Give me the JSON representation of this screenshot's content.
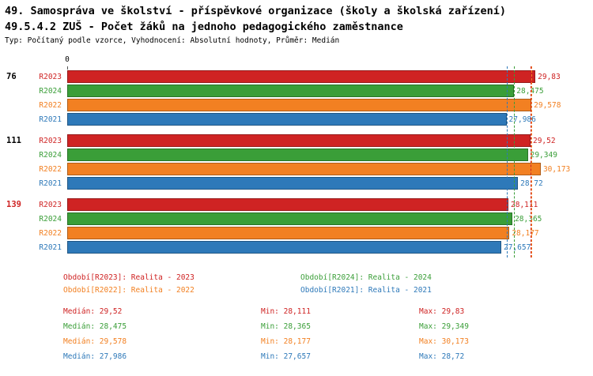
{
  "title_line1": "49. Samospráva ve školství - příspěvkové organizace (školy a školská zařízení)",
  "title_line2": "49.5.4.2 ZUŠ - Počet žáků na jednoho pedagogického zaměstnance",
  "subtitle": "Typ: Počítaný podle vzorce, Vyhodnocení: Absolutní hodnoty, Průměr: Medián",
  "colors": {
    "r2023": "#cf2323",
    "r2024": "#3a9e38",
    "r2022": "#f28022",
    "r2021": "#2e79b9"
  },
  "chart_data": {
    "type": "bar",
    "orientation": "horizontal",
    "axis": {
      "min": 0,
      "max": 33.5,
      "origin_label": "0"
    },
    "series_order": [
      "R2023",
      "R2024",
      "R2022",
      "R2021"
    ],
    "groups": [
      {
        "label": "76",
        "label_color": "#000000",
        "bars": [
          {
            "series": "R2023",
            "value": 29.83,
            "value_label": "29,83"
          },
          {
            "series": "R2024",
            "value": 28.475,
            "value_label": "28,475"
          },
          {
            "series": "R2022",
            "value": 29.578,
            "value_label": "29,578"
          },
          {
            "series": "R2021",
            "value": 27.986,
            "value_label": "27,986"
          }
        ]
      },
      {
        "label": "111",
        "label_color": "#000000",
        "bars": [
          {
            "series": "R2023",
            "value": 29.52,
            "value_label": "29,52"
          },
          {
            "series": "R2024",
            "value": 29.349,
            "value_label": "29,349"
          },
          {
            "series": "R2022",
            "value": 30.173,
            "value_label": "30,173"
          },
          {
            "series": "R2021",
            "value": 28.72,
            "value_label": "28,72"
          }
        ]
      },
      {
        "label": "139",
        "label_color": "#cf2323",
        "bars": [
          {
            "series": "R2023",
            "value": 28.111,
            "value_label": "28,111"
          },
          {
            "series": "R2024",
            "value": 28.365,
            "value_label": "28,365"
          },
          {
            "series": "R2022",
            "value": 28.177,
            "value_label": "28,177"
          },
          {
            "series": "R2021",
            "value": 27.657,
            "value_label": "27,657"
          }
        ]
      }
    ],
    "median_lines": [
      {
        "series": "R2023",
        "value": 29.52
      },
      {
        "series": "R2024",
        "value": 28.475
      },
      {
        "series": "R2022",
        "value": 29.578
      },
      {
        "series": "R2021",
        "value": 27.986
      }
    ]
  },
  "legend": [
    {
      "series": "R2023",
      "label": "Období[R2023]: Realita - 2023"
    },
    {
      "series": "R2024",
      "label": "Období[R2024]: Realita - 2024"
    },
    {
      "series": "R2022",
      "label": "Období[R2022]: Realita - 2022"
    },
    {
      "series": "R2021",
      "label": "Období[R2021]: Realita - 2021"
    }
  ],
  "stats": [
    {
      "series": "R2023",
      "median": "Medián: 29,52",
      "min": "Min: 28,111",
      "max": "Max: 29,83"
    },
    {
      "series": "R2024",
      "median": "Medián: 28,475",
      "min": "Min: 28,365",
      "max": "Max: 29,349"
    },
    {
      "series": "R2022",
      "median": "Medián: 29,578",
      "min": "Min: 28,177",
      "max": "Max: 30,173"
    },
    {
      "series": "R2021",
      "median": "Medián: 27,986",
      "min": "Min: 27,657",
      "max": "Max: 28,72"
    }
  ]
}
